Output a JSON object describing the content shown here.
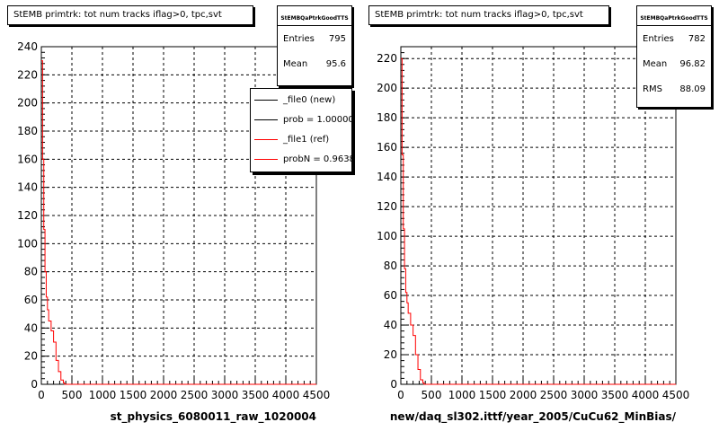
{
  "chart_data": [
    {
      "type": "line",
      "title": "StEMB primtrk: tot num tracks iflag>0, tpc,svt",
      "xlabel": "st_physics_6080011_raw_1020004",
      "ylabel": "",
      "xlim": [
        0,
        4500
      ],
      "ylim": [
        0,
        240
      ],
      "x_ticks": [
        "0",
        "500",
        "1000",
        "1500",
        "2000",
        "2500",
        "3000",
        "3500",
        "4000",
        "4500"
      ],
      "y_ticks": [
        "0",
        "20",
        "40",
        "60",
        "80",
        "100",
        "120",
        "140",
        "160",
        "180",
        "200",
        "220",
        "240"
      ],
      "grid": true,
      "stats": {
        "header": "StEMBQaPtrkGoodTTS",
        "rows": [
          {
            "label": "Entries",
            "value": "795"
          },
          {
            "label": "Mean",
            "value": "95.6"
          }
        ]
      },
      "legend": {
        "placement": "top-right",
        "entries": [
          {
            "label": "_file0 (new)",
            "color": "#000000"
          },
          {
            "label": "prob = 1.000000",
            "color": "#000000"
          },
          {
            "label": "_file1 (ref)",
            "color": "#ff0000"
          },
          {
            "label": "probN = 0.963836",
            "color": "#ff0000"
          }
        ]
      },
      "series": [
        {
          "color": "#ff0000",
          "x": [
            0,
            20,
            40,
            60,
            80,
            100,
            120,
            140,
            160,
            180,
            200,
            220,
            240,
            260,
            280,
            300,
            320,
            340,
            360,
            380,
            400,
            4500
          ],
          "y": [
            230,
            160,
            110,
            80,
            62,
            53,
            45,
            45,
            38,
            38,
            30,
            30,
            17,
            17,
            9,
            9,
            3,
            3,
            1,
            0,
            0,
            0
          ]
        }
      ]
    },
    {
      "type": "line",
      "title": "StEMB primtrk: tot num tracks iflag>0, tpc,svt",
      "xlabel": "new/daq_sl302.ittf/year_2005/CuCu62_MinBias/",
      "ylabel": "",
      "xlim": [
        0,
        4500
      ],
      "ylim": [
        0,
        228
      ],
      "x_ticks": [
        "0",
        "500",
        "1000",
        "1500",
        "2000",
        "2500",
        "3000",
        "3500",
        "4000",
        "4500"
      ],
      "y_ticks": [
        "0",
        "20",
        "40",
        "60",
        "80",
        "100",
        "120",
        "140",
        "160",
        "180",
        "200",
        "220"
      ],
      "grid": true,
      "stats": {
        "header": "StEMBQaPtrkGoodTTS",
        "rows": [
          {
            "label": "Entries",
            "value": "782"
          },
          {
            "label": "Mean",
            "value": "96.82"
          },
          {
            "label": "RMS",
            "value": "88.09"
          }
        ]
      },
      "series": [
        {
          "color": "#ff0000",
          "x": [
            0,
            20,
            40,
            60,
            80,
            100,
            120,
            140,
            160,
            180,
            200,
            220,
            240,
            260,
            280,
            300,
            320,
            340,
            360,
            380,
            400,
            4500
          ],
          "y": [
            220,
            155,
            105,
            78,
            62,
            55,
            48,
            48,
            40,
            40,
            33,
            33,
            20,
            20,
            10,
            10,
            3,
            3,
            1,
            0,
            0,
            0
          ]
        }
      ]
    }
  ]
}
